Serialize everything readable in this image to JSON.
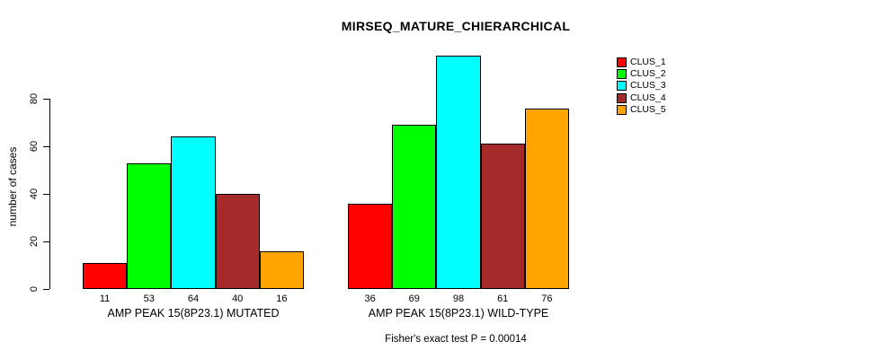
{
  "title": "MIRSEQ_MATURE_CHIERARCHICAL",
  "chart_data": {
    "type": "bar",
    "title": "MIRSEQ_MATURE_CHIERARCHICAL",
    "ylabel": "number of cases",
    "xlabel": "",
    "yticks": [
      0,
      20,
      40,
      60,
      80
    ],
    "ylim": [
      0,
      100
    ],
    "grid": false,
    "legend_position": "top-right",
    "bar_value_labels": true,
    "categories": [
      "AMP PEAK 15(8P23.1) MUTATED",
      "AMP PEAK 15(8P23.1) WILD-TYPE"
    ],
    "series": [
      {
        "name": "CLUS_1",
        "color": "#ff0000",
        "values": [
          11,
          36
        ]
      },
      {
        "name": "CLUS_2",
        "color": "#00ff00",
        "values": [
          53,
          69
        ]
      },
      {
        "name": "CLUS_3",
        "color": "#00ffff",
        "values": [
          64,
          98
        ]
      },
      {
        "name": "CLUS_4",
        "color": "#a52a2a",
        "values": [
          40,
          61
        ]
      },
      {
        "name": "CLUS_5",
        "color": "#ffa500",
        "values": [
          16,
          76
        ]
      }
    ],
    "annotation": "Fisher's exact test P = 0.00014"
  }
}
